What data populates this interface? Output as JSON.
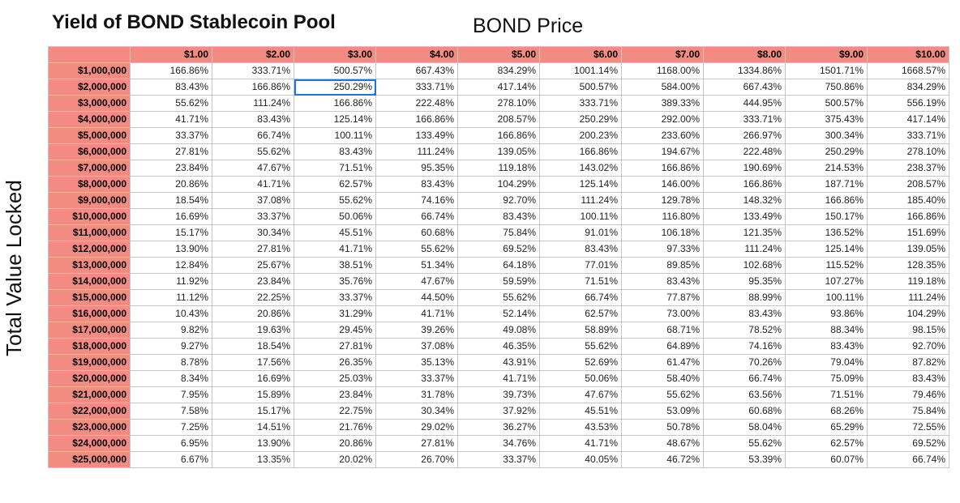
{
  "title": "Yield of BOND Stablecoin Pool",
  "col_axis_label": "BOND Price",
  "row_axis_label": "Total Value Locked",
  "colors": {
    "header_fill": "#f28b82",
    "grid_line": "#c6c6c6",
    "selection": "#1a73e8"
  },
  "selected_cell": {
    "row": 1,
    "col": 2
  },
  "chart_data": {
    "type": "table",
    "title": "Yield of BOND Stablecoin Pool",
    "columns_label": "BOND Price",
    "rows_label": "Total Value Locked",
    "columns": [
      "$1.00",
      "$2.00",
      "$3.00",
      "$4.00",
      "$5.00",
      "$6.00",
      "$7.00",
      "$8.00",
      "$9.00",
      "$10.00"
    ],
    "rows": [
      {
        "tvl": "$1,000,000",
        "values": [
          "166.86%",
          "333.71%",
          "500.57%",
          "667.43%",
          "834.29%",
          "1001.14%",
          "1168.00%",
          "1334.86%",
          "1501.71%",
          "1668.57%"
        ]
      },
      {
        "tvl": "$2,000,000",
        "values": [
          "83.43%",
          "166.86%",
          "250.29%",
          "333.71%",
          "417.14%",
          "500.57%",
          "584.00%",
          "667.43%",
          "750.86%",
          "834.29%"
        ]
      },
      {
        "tvl": "$3,000,000",
        "values": [
          "55.62%",
          "111.24%",
          "166.86%",
          "222.48%",
          "278.10%",
          "333.71%",
          "389.33%",
          "444.95%",
          "500.57%",
          "556.19%"
        ]
      },
      {
        "tvl": "$4,000,000",
        "values": [
          "41.71%",
          "83.43%",
          "125.14%",
          "166.86%",
          "208.57%",
          "250.29%",
          "292.00%",
          "333.71%",
          "375.43%",
          "417.14%"
        ]
      },
      {
        "tvl": "$5,000,000",
        "values": [
          "33.37%",
          "66.74%",
          "100.11%",
          "133.49%",
          "166.86%",
          "200.23%",
          "233.60%",
          "266.97%",
          "300.34%",
          "333.71%"
        ]
      },
      {
        "tvl": "$6,000,000",
        "values": [
          "27.81%",
          "55.62%",
          "83.43%",
          "111.24%",
          "139.05%",
          "166.86%",
          "194.67%",
          "222.48%",
          "250.29%",
          "278.10%"
        ]
      },
      {
        "tvl": "$7,000,000",
        "values": [
          "23.84%",
          "47.67%",
          "71.51%",
          "95.35%",
          "119.18%",
          "143.02%",
          "166.86%",
          "190.69%",
          "214.53%",
          "238.37%"
        ]
      },
      {
        "tvl": "$8,000,000",
        "values": [
          "20.86%",
          "41.71%",
          "62.57%",
          "83.43%",
          "104.29%",
          "125.14%",
          "146.00%",
          "166.86%",
          "187.71%",
          "208.57%"
        ]
      },
      {
        "tvl": "$9,000,000",
        "values": [
          "18.54%",
          "37.08%",
          "55.62%",
          "74.16%",
          "92.70%",
          "111.24%",
          "129.78%",
          "148.32%",
          "166.86%",
          "185.40%"
        ]
      },
      {
        "tvl": "$10,000,000",
        "values": [
          "16.69%",
          "33.37%",
          "50.06%",
          "66.74%",
          "83.43%",
          "100.11%",
          "116.80%",
          "133.49%",
          "150.17%",
          "166.86%"
        ]
      },
      {
        "tvl": "$11,000,000",
        "values": [
          "15.17%",
          "30.34%",
          "45.51%",
          "60.68%",
          "75.84%",
          "91.01%",
          "106.18%",
          "121.35%",
          "136.52%",
          "151.69%"
        ]
      },
      {
        "tvl": "$12,000,000",
        "values": [
          "13.90%",
          "27.81%",
          "41.71%",
          "55.62%",
          "69.52%",
          "83.43%",
          "97.33%",
          "111.24%",
          "125.14%",
          "139.05%"
        ]
      },
      {
        "tvl": "$13,000,000",
        "values": [
          "12.84%",
          "25.67%",
          "38.51%",
          "51.34%",
          "64.18%",
          "77.01%",
          "89.85%",
          "102.68%",
          "115.52%",
          "128.35%"
        ]
      },
      {
        "tvl": "$14,000,000",
        "values": [
          "11.92%",
          "23.84%",
          "35.76%",
          "47.67%",
          "59.59%",
          "71.51%",
          "83.43%",
          "95.35%",
          "107.27%",
          "119.18%"
        ]
      },
      {
        "tvl": "$15,000,000",
        "values": [
          "11.12%",
          "22.25%",
          "33.37%",
          "44.50%",
          "55.62%",
          "66.74%",
          "77.87%",
          "88.99%",
          "100.11%",
          "111.24%"
        ]
      },
      {
        "tvl": "$16,000,000",
        "values": [
          "10.43%",
          "20.86%",
          "31.29%",
          "41.71%",
          "52.14%",
          "62.57%",
          "73.00%",
          "83.43%",
          "93.86%",
          "104.29%"
        ]
      },
      {
        "tvl": "$17,000,000",
        "values": [
          "9.82%",
          "19.63%",
          "29.45%",
          "39.26%",
          "49.08%",
          "58.89%",
          "68.71%",
          "78.52%",
          "88.34%",
          "98.15%"
        ]
      },
      {
        "tvl": "$18,000,000",
        "values": [
          "9.27%",
          "18.54%",
          "27.81%",
          "37.08%",
          "46.35%",
          "55.62%",
          "64.89%",
          "74.16%",
          "83.43%",
          "92.70%"
        ]
      },
      {
        "tvl": "$19,000,000",
        "values": [
          "8.78%",
          "17.56%",
          "26.35%",
          "35.13%",
          "43.91%",
          "52.69%",
          "61.47%",
          "70.26%",
          "79.04%",
          "87.82%"
        ]
      },
      {
        "tvl": "$20,000,000",
        "values": [
          "8.34%",
          "16.69%",
          "25.03%",
          "33.37%",
          "41.71%",
          "50.06%",
          "58.40%",
          "66.74%",
          "75.09%",
          "83.43%"
        ]
      },
      {
        "tvl": "$21,000,000",
        "values": [
          "7.95%",
          "15.89%",
          "23.84%",
          "31.78%",
          "39.73%",
          "47.67%",
          "55.62%",
          "63.56%",
          "71.51%",
          "79.46%"
        ]
      },
      {
        "tvl": "$22,000,000",
        "values": [
          "7.58%",
          "15.17%",
          "22.75%",
          "30.34%",
          "37.92%",
          "45.51%",
          "53.09%",
          "60.68%",
          "68.26%",
          "75.84%"
        ]
      },
      {
        "tvl": "$23,000,000",
        "values": [
          "7.25%",
          "14.51%",
          "21.76%",
          "29.02%",
          "36.27%",
          "43.53%",
          "50.78%",
          "58.04%",
          "65.29%",
          "72.55%"
        ]
      },
      {
        "tvl": "$24,000,000",
        "values": [
          "6.95%",
          "13.90%",
          "20.86%",
          "27.81%",
          "34.76%",
          "41.71%",
          "48.67%",
          "55.62%",
          "62.57%",
          "69.52%"
        ]
      },
      {
        "tvl": "$25,000,000",
        "values": [
          "6.67%",
          "13.35%",
          "20.02%",
          "26.70%",
          "33.37%",
          "40.05%",
          "46.72%",
          "53.39%",
          "60.07%",
          "66.74%"
        ]
      }
    ]
  }
}
